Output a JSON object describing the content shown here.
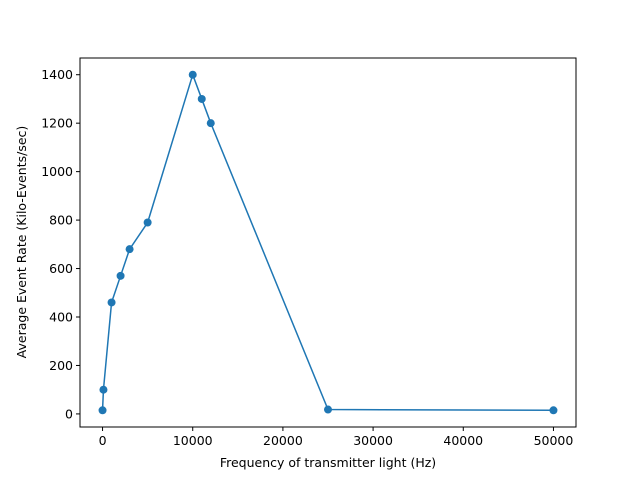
{
  "chart_data": {
    "type": "line",
    "x_label": "Frequency of transmitter light (Hz)",
    "y_label": "Average Event Rate (Kilo-Events/sec)",
    "series": [
      {
        "color": "#1f77b4",
        "x": [
          0,
          100,
          1000,
          2000,
          3000,
          5000,
          10000,
          11000,
          12000,
          25000,
          50000
        ],
        "values": [
          15,
          100,
          460,
          570,
          680,
          790,
          1400,
          1300,
          1200,
          18,
          15
        ]
      }
    ],
    "xlim": [
      -2500,
      52500
    ],
    "xticks": [
      0,
      10000,
      20000,
      30000,
      40000,
      50000
    ],
    "ylim": [
      -54,
      1469
    ],
    "yticks": [
      0,
      200,
      400,
      600,
      800,
      1000,
      1200,
      1400
    ],
    "grid": false
  }
}
